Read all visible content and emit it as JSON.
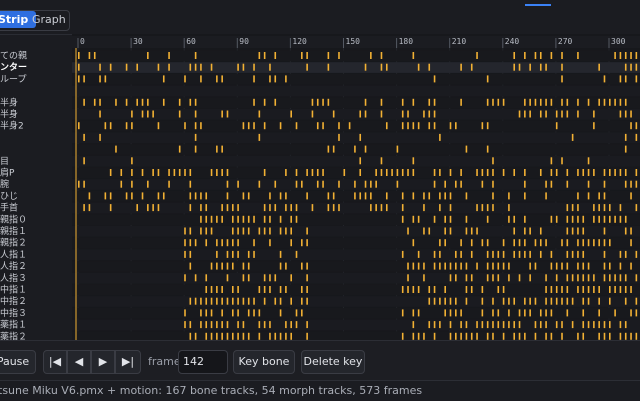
{
  "tabs": [
    "Strip",
    "Graph"
  ],
  "ruler": {
    "ticks": [
      0,
      30,
      60,
      90,
      120,
      150,
      180,
      210,
      240,
      270,
      300
    ]
  },
  "rows": [
    "ての親",
    "ンター",
    "ループ",
    null,
    "半身",
    "半身",
    "半身2",
    null,
    null,
    "目",
    "肩P",
    "腕",
    "ひじ",
    "手首",
    "親指０",
    "親指１",
    "親指２",
    "人指１",
    "人指２",
    "人指３",
    "中指１",
    "中指２",
    "中指３",
    "薬指１",
    "薬指２"
  ],
  "toolbar": {
    "pause": "Pause",
    "frame_label": "frame",
    "frame_value": "142",
    "key_bone": "Key bone",
    "delete_key": "Delete key"
  },
  "status": "tsune Miku V6.pmx + motion: 167 bone tracks, 54 morph tracks, 573 frames"
}
